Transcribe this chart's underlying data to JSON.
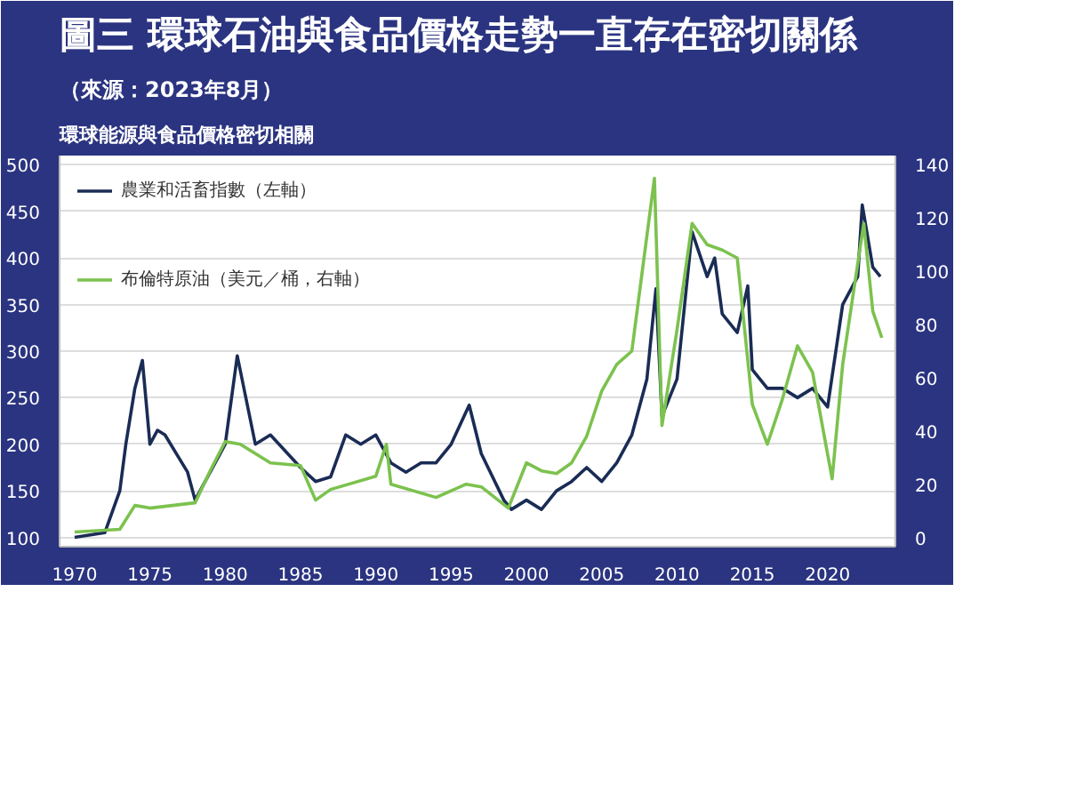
{
  "chart_data": {
    "type": "line",
    "title": "圖三 環球石油與食品價格走勢一直存在密切關係",
    "subtitle": "環球能源與食品價格密切相關",
    "annotations": [
      "（來源：2023年8月）"
    ],
    "xlim": [
      1969,
      2024.5
    ],
    "xticks": [
      1970,
      1975,
      1980,
      1985,
      1990,
      1995,
      2000,
      2005,
      2010,
      2015,
      2020
    ],
    "ylim": [
      90,
      510
    ],
    "yticks": [
      100,
      150,
      200,
      250,
      300,
      350,
      400,
      450,
      500
    ],
    "y2lim": [
      -3.5,
      143.5
    ],
    "y2ticks": [
      0,
      20,
      40,
      60,
      80,
      100,
      120,
      140
    ],
    "grid": "y",
    "legend": "top left",
    "line_style": "solid",
    "marker": "none",
    "series": [
      {
        "name": "農業和活畜指數（左軸）",
        "color": "#1a2c55",
        "x": [
          1970,
          1972,
          1973,
          1973.4,
          1974,
          1974.5,
          1975,
          1975.5,
          1976,
          1977.5,
          1978,
          1979,
          1980,
          1980.8,
          1982,
          1983,
          1985,
          1986,
          1987,
          1988,
          1989,
          1990,
          1991,
          1992,
          1993,
          1994,
          1995,
          1996.2,
          1997,
          1998.5,
          1999,
          2000,
          2001,
          2002,
          2003,
          2004,
          2005,
          2006,
          2007,
          2008,
          2008.6,
          2009,
          2010,
          2011,
          2012,
          2012.5,
          2013,
          2014,
          2014.7,
          2015,
          2016,
          2017,
          2018,
          2019,
          2020,
          2021,
          2022,
          2022.3,
          2023,
          2023.5
        ],
        "values": [
          100,
          105,
          150,
          200,
          260,
          290,
          200,
          215,
          210,
          170,
          140,
          170,
          200,
          295,
          200,
          210,
          175,
          160,
          165,
          210,
          200,
          210,
          180,
          170,
          180,
          180,
          200,
          242,
          190,
          140,
          130,
          140,
          130,
          150,
          160,
          175,
          160,
          180,
          210,
          270,
          367,
          230,
          270,
          428,
          380,
          400,
          340,
          320,
          370,
          280,
          260,
          260,
          250,
          260,
          240,
          350,
          380,
          457,
          390,
          380
        ]
      },
      {
        "name": "布倫特原油（美元／桶，右軸）",
        "color": "#7cc24e",
        "axis": "y2",
        "x": [
          1970,
          1973,
          1974,
          1975,
          1978,
          1979,
          1980,
          1981,
          1983,
          1985,
          1986,
          1987,
          1990,
          1990.7,
          1991,
          1994,
          1996,
          1997,
          1998.8,
          2000,
          2001,
          2002,
          2003,
          2004,
          2005,
          2006,
          2007,
          2008.5,
          2009,
          2010,
          2011,
          2012,
          2013,
          2014,
          2015,
          2016,
          2017,
          2018,
          2019,
          2020.3,
          2021,
          2022.4,
          2023,
          2023.6
        ],
        "values": [
          2,
          3,
          12,
          11,
          13,
          25,
          36,
          35,
          28,
          27,
          14,
          18,
          23,
          35,
          20,
          15,
          20,
          19,
          11,
          28,
          25,
          24,
          28,
          38,
          55,
          65,
          70,
          135,
          42,
          78,
          118,
          110,
          108,
          105,
          50,
          35,
          52,
          72,
          62,
          22,
          65,
          118,
          85,
          75
        ]
      }
    ]
  }
}
